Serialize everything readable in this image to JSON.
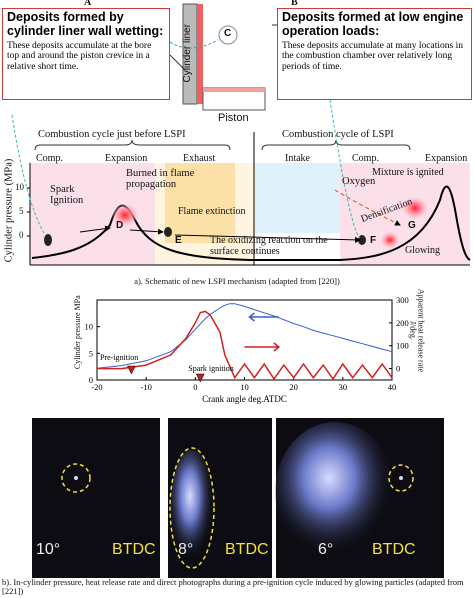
{
  "schematic": {
    "label_a": "A",
    "label_b": "B",
    "box_a": {
      "title": "Deposits formed by cylinder liner wall wetting:",
      "body": "These deposits accumulate at the bore top and around the piston crevice in a relative short time."
    },
    "box_b": {
      "title": "Deposits formed at low engine operation loads:",
      "body": "These deposits accumulate at many locations in the combustion chamber over relatively long periods of time."
    },
    "label_c": "C",
    "liner": "Cylinder liner",
    "piston": "Piston",
    "cycle_before": "Combustion cycle just before LSPI",
    "cycle_lspi": "Combustion cycle of LSPI",
    "phases": [
      "Comp.",
      "Expansion",
      "Exhaust",
      "Intake",
      "Comp.",
      "Expansion"
    ],
    "ylabel": "Cylinder pressure (MPa)",
    "yticks": [
      "10",
      "5",
      "0"
    ],
    "spark": "Spark Ignition",
    "burned": "Burned in flame propagation",
    "extinction": "Flame extinction",
    "oxygen": "Oxygen",
    "ignited": "Mixture is ignited",
    "densification": "Densification",
    "glowing": "Glowing",
    "oxidizing": "The oxidizing reaction on the surface continues",
    "letters": [
      "D",
      "E",
      "F",
      "G"
    ],
    "caption": "a). Schematic of new LSPI mechanism (adapted from [220])"
  },
  "chart_data": {
    "type": "line",
    "x": [
      -20,
      -15,
      -10,
      -5,
      -2,
      0,
      1,
      2,
      3,
      5,
      6,
      7,
      8,
      10,
      12,
      14,
      16,
      18,
      20,
      22,
      24,
      26,
      28,
      30,
      32,
      34,
      36,
      38,
      40
    ],
    "series": [
      {
        "color": "#3a5fd0",
        "values": [
          2.2,
          2.7,
          3.6,
          5.3,
          7.5,
          9.5,
          10.5,
          11.5,
          12.3,
          13.5,
          14,
          14.3,
          14.3,
          13.8,
          13.2,
          12.6,
          12,
          11.3,
          10.6,
          10,
          9.3,
          8.8,
          8.3,
          7.8,
          7.3,
          6.8,
          6.3,
          5.8,
          5.3
        ]
      },
      {
        "color": "#d42020",
        "axis": "y2",
        "values": [
          0,
          0,
          15,
          60,
          130,
          200,
          245,
          250,
          235,
          160,
          60,
          10,
          -40,
          20,
          -40,
          20,
          -45,
          15,
          -40,
          20,
          -40,
          15,
          -45,
          20,
          -40,
          15,
          -40,
          20,
          -40
        ]
      }
    ],
    "xlim": [
      -20,
      40
    ],
    "xticks": [
      -20,
      -10,
      0,
      10,
      20,
      30,
      40
    ],
    "ylim": [
      0,
      15
    ],
    "yticks": [
      0,
      5,
      10
    ],
    "y2lim": [
      -50,
      300
    ],
    "y2ticks": [
      0,
      100,
      200,
      300
    ],
    "xlabel": "Crank angle  deg.ATDC",
    "ylabel": "Cylinder pressure MPa",
    "y2label": "Apparent heat release rate J/deg.",
    "annotations": [
      "Pre-ignition",
      "Spark ignition"
    ]
  },
  "photos": [
    {
      "angle": "10°",
      "unit": "BTDC"
    },
    {
      "angle": "8°",
      "unit": "BTDC"
    },
    {
      "angle": "6°",
      "unit": "BTDC"
    }
  ],
  "caption_b": "b). In-cylinder pressure, heat release rate and direct photographs during a pre-ignition cycle induced by glowing particles (adapted from [221])"
}
